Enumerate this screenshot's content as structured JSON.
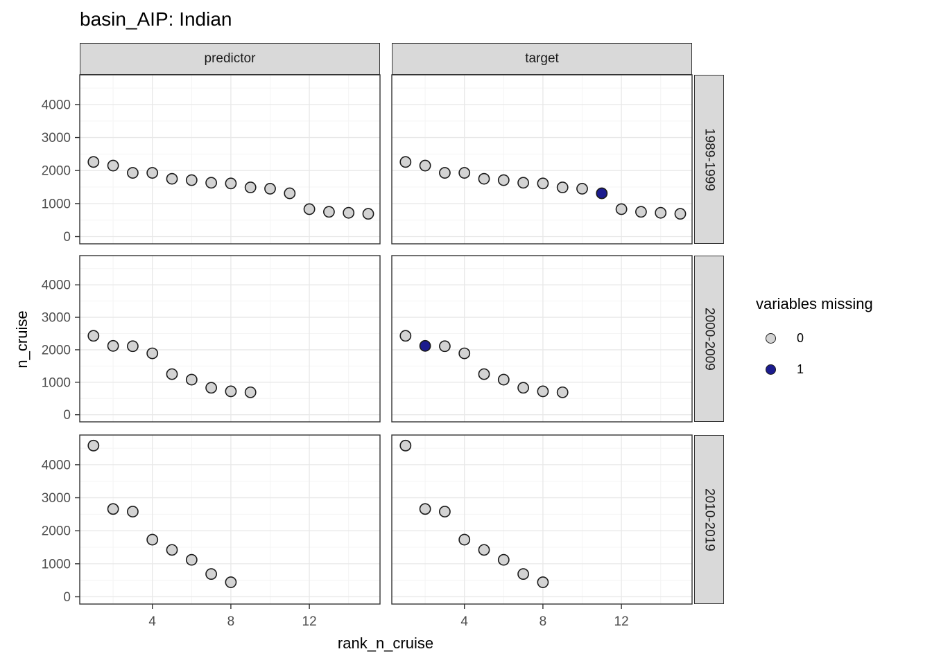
{
  "title": "basin_AIP: Indian",
  "chart_data": {
    "type": "scatter",
    "title": "basin_AIP: Indian",
    "xlabel": "rank_n_cruise",
    "ylabel": "n_cruise",
    "facet_cols": [
      "predictor",
      "target"
    ],
    "facet_rows": [
      "1989-1999",
      "2000-2009",
      "2010-2019"
    ],
    "x_axis": {
      "ticks": [
        4,
        8,
        12
      ],
      "minor": [
        2,
        6,
        10,
        14
      ],
      "range": [
        0.3,
        15.6
      ]
    },
    "y_axis": {
      "ticks": [
        0,
        1000,
        2000,
        3000,
        4000
      ],
      "minor": [
        500,
        1500,
        2500,
        3500,
        4500
      ],
      "range": [
        -220,
        4900
      ]
    },
    "grid": true,
    "note": "predictor and target panels share identical points; missing_rank_in_target is the rank drawn with variables missing = 1 (navy) in the target column only",
    "rows": [
      {
        "row_label": "1989-1999",
        "x": [
          1,
          2,
          3,
          4,
          5,
          6,
          7,
          8,
          9,
          10,
          11,
          12,
          13,
          14,
          15
        ],
        "y": [
          2260,
          2150,
          1930,
          1930,
          1750,
          1710,
          1630,
          1610,
          1490,
          1450,
          1310,
          830,
          750,
          720,
          690
        ],
        "missing_rank_in_target": 11
      },
      {
        "row_label": "2000-2009",
        "x": [
          1,
          2,
          3,
          4,
          5,
          6,
          7,
          8,
          9
        ],
        "y": [
          2430,
          2120,
          2110,
          1890,
          1250,
          1080,
          830,
          720,
          690
        ],
        "missing_rank_in_target": 2
      },
      {
        "row_label": "2010-2019",
        "x": [
          1,
          2,
          3,
          4,
          5,
          6,
          7,
          8
        ],
        "y": [
          4580,
          2660,
          2580,
          1730,
          1420,
          1120,
          690,
          440
        ],
        "missing_rank_in_target": null
      }
    ],
    "legend": {
      "title": "variables missing",
      "entries": [
        {
          "label": "0",
          "color": "#d3d3d3"
        },
        {
          "label": "1",
          "color": "#1b1b8e"
        }
      ]
    },
    "colors": {
      "point_fill_0": "#d3d3d3",
      "point_fill_1": "#1b1b8e",
      "point_stroke": "#1a1a1a",
      "strip_bg": "#d9d9d9",
      "strip_border": "#333333",
      "panel_border": "#333333",
      "grid_major": "#e8e8e8",
      "grid_minor": "#f4f4f4",
      "axis_text": "#4d4d4d",
      "tick_mark": "#333333"
    }
  }
}
